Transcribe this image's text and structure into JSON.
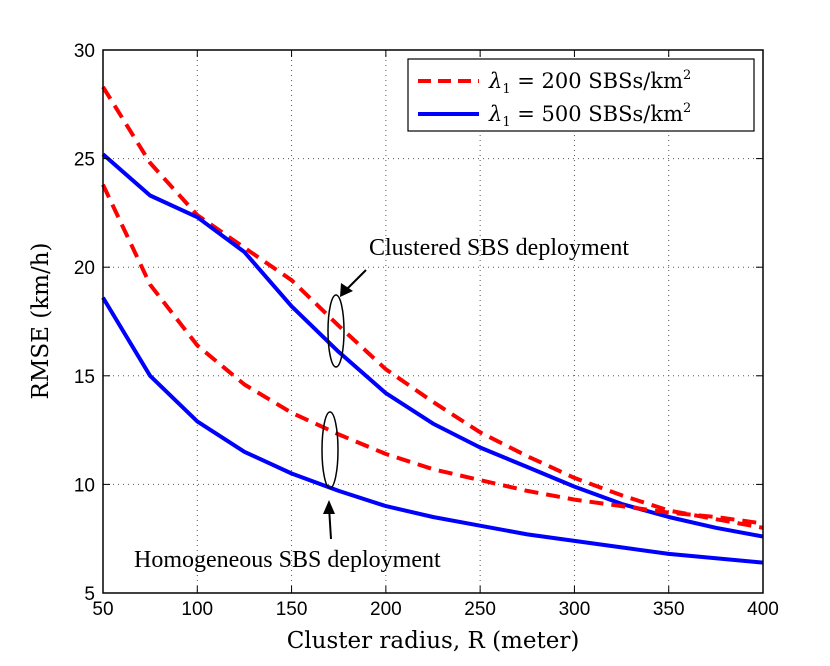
{
  "chart_data": {
    "type": "line",
    "title": "",
    "xlabel": "Cluster radius, R (meter)",
    "ylabel": "RMSE (km/h)",
    "xlim": [
      50,
      400
    ],
    "ylim": [
      5,
      30
    ],
    "xticks": [
      50,
      100,
      150,
      200,
      250,
      300,
      350,
      400
    ],
    "yticks": [
      5,
      10,
      15,
      20,
      25,
      30
    ],
    "grid": true,
    "legend_position": "top-right",
    "legend": [
      {
        "pre": "λ",
        "sub": "1",
        "mid": " = 200 SBSs/km",
        "sup": "2",
        "color": "#ff0000",
        "style": "dashed"
      },
      {
        "pre": "λ",
        "sub": "1",
        "mid": " = 500 SBSs/km",
        "sup": "2",
        "color": "#0000ff",
        "style": "solid"
      }
    ],
    "series": [
      {
        "name": "λ1 = 200 SBSs/km2, clustered",
        "color": "#ff0000",
        "style": "dashed",
        "x": [
          50,
          75,
          100,
          125,
          150,
          175,
          200,
          225,
          250,
          275,
          300,
          325,
          350,
          375,
          400
        ],
        "y": [
          28.3,
          24.8,
          22.4,
          20.9,
          19.4,
          17.3,
          15.3,
          13.8,
          12.4,
          11.3,
          10.3,
          9.5,
          8.8,
          8.4,
          8.0
        ]
      },
      {
        "name": "λ1 = 500 SBSs/km2, clustered",
        "color": "#0000ff",
        "style": "solid",
        "x": [
          50,
          75,
          100,
          125,
          150,
          175,
          200,
          225,
          250,
          275,
          300,
          325,
          350,
          375,
          400
        ],
        "y": [
          25.2,
          23.3,
          22.3,
          20.7,
          18.2,
          16.1,
          14.2,
          12.8,
          11.7,
          10.8,
          9.9,
          9.1,
          8.5,
          8.0,
          7.6
        ]
      },
      {
        "name": "λ1 = 200 SBSs/km2, homogeneous",
        "color": "#ff0000",
        "style": "dashed",
        "x": [
          50,
          75,
          100,
          125,
          150,
          175,
          200,
          225,
          250,
          275,
          300,
          325,
          350,
          375,
          400
        ],
        "y": [
          23.8,
          19.2,
          16.4,
          14.6,
          13.3,
          12.3,
          11.4,
          10.7,
          10.2,
          9.7,
          9.3,
          9.0,
          8.7,
          8.5,
          8.2
        ]
      },
      {
        "name": "λ1 = 500 SBSs/km2, homogeneous",
        "color": "#0000ff",
        "style": "solid",
        "x": [
          50,
          75,
          100,
          125,
          150,
          175,
          200,
          225,
          250,
          275,
          300,
          325,
          350,
          375,
          400
        ],
        "y": [
          18.6,
          15.0,
          12.9,
          11.5,
          10.5,
          9.7,
          9.0,
          8.5,
          8.1,
          7.7,
          7.4,
          7.1,
          6.8,
          6.6,
          6.4
        ]
      }
    ],
    "annotations": [
      {
        "text": "Clustered SBS deployment",
        "ellipse_center": [
          173,
          16.8
        ],
        "arrow_tip": [
          177,
          18.8
        ]
      },
      {
        "text": "Homogeneous SBS deployment",
        "ellipse_center": [
          170,
          11.0
        ],
        "arrow_tip": [
          171,
          9.2
        ]
      }
    ]
  }
}
